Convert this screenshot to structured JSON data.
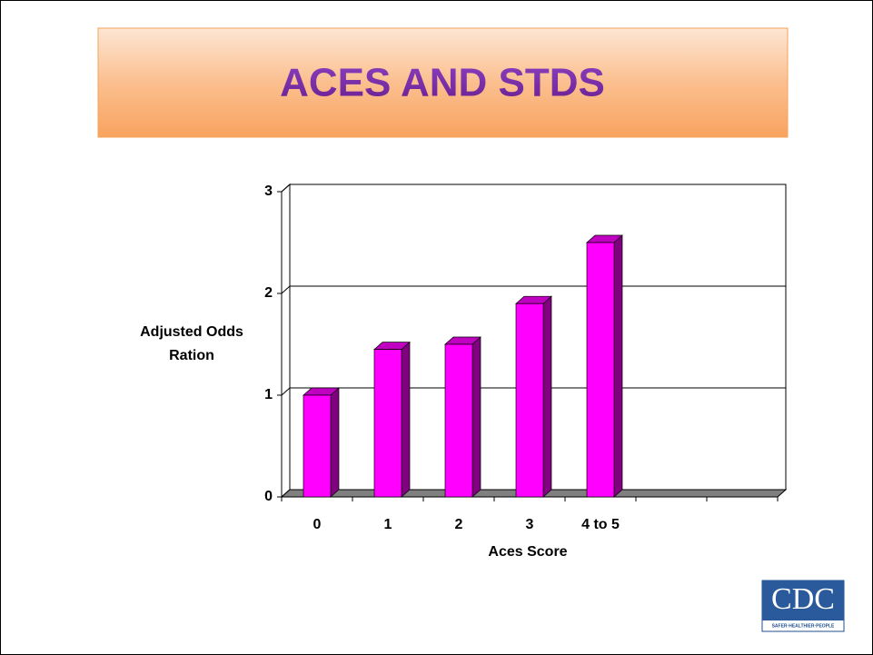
{
  "slide": {
    "title": "ACES AND STDS",
    "logo": {
      "text": "CDC",
      "tagline": "SAFER·HEALTHIER·PEOPLE"
    }
  },
  "chart_data": {
    "type": "bar3d",
    "categories": [
      "0",
      "1",
      "2",
      "3",
      "4 to 5",
      null,
      null
    ],
    "values": [
      1.0,
      1.45,
      1.5,
      1.9,
      2.5,
      null,
      null
    ],
    "color": "#ff00ff",
    "side_color": "#800080",
    "top_color": "#c000c0",
    "ylim": [
      0,
      3
    ],
    "yticks": [
      0,
      1,
      2,
      3
    ],
    "grid": true,
    "y_label": "Adjusted Odds Ration",
    "x_label": "Aces Score"
  }
}
